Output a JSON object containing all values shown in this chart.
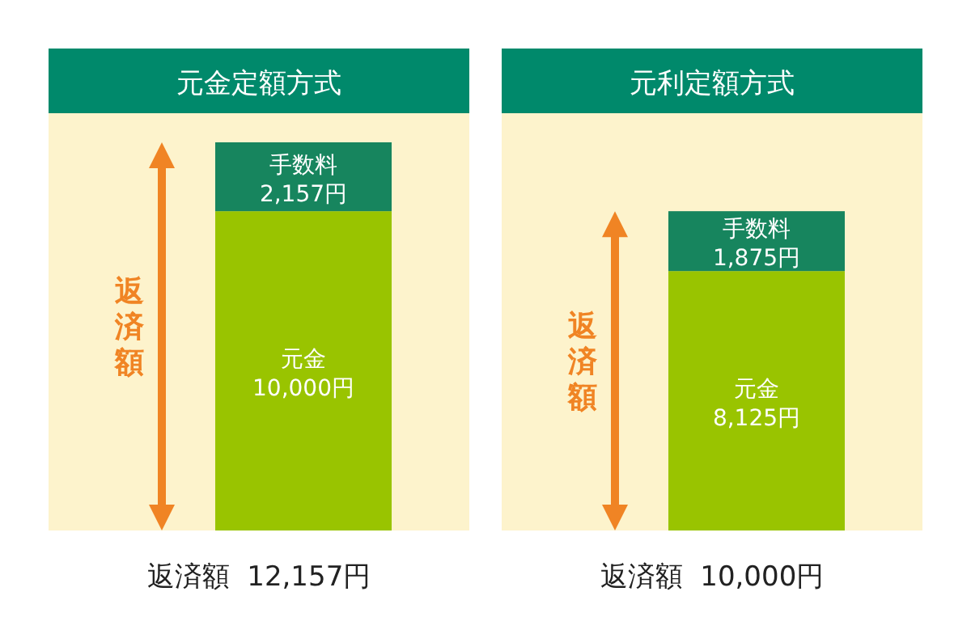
{
  "chart_data": [
    {
      "type": "bar",
      "title": "元金定額方式",
      "stacked": true,
      "categories": [
        null
      ],
      "series": [
        {
          "name": "元金",
          "color": "#99c400",
          "values": [
            10000
          ],
          "value_labels": [
            "10,000円"
          ]
        },
        {
          "name": "手数料",
          "color": "#17855e",
          "values": [
            2157
          ],
          "value_labels": [
            "2,157円"
          ]
        }
      ],
      "annotations": [
        "返済額"
      ],
      "totals": [
        "返済額  12,157円"
      ]
    },
    {
      "type": "bar",
      "title": "元利定額方式",
      "stacked": true,
      "categories": [
        null
      ],
      "series": [
        {
          "name": "元金",
          "color": "#99c400",
          "values": [
            8125
          ],
          "value_labels": [
            "8,125円"
          ]
        },
        {
          "name": "手数料",
          "color": "#17855e",
          "values": [
            1875
          ],
          "value_labels": [
            "1,875円"
          ]
        }
      ],
      "annotations": [
        "返済額"
      ],
      "totals": [
        "返済額  10,000円"
      ]
    }
  ]
}
